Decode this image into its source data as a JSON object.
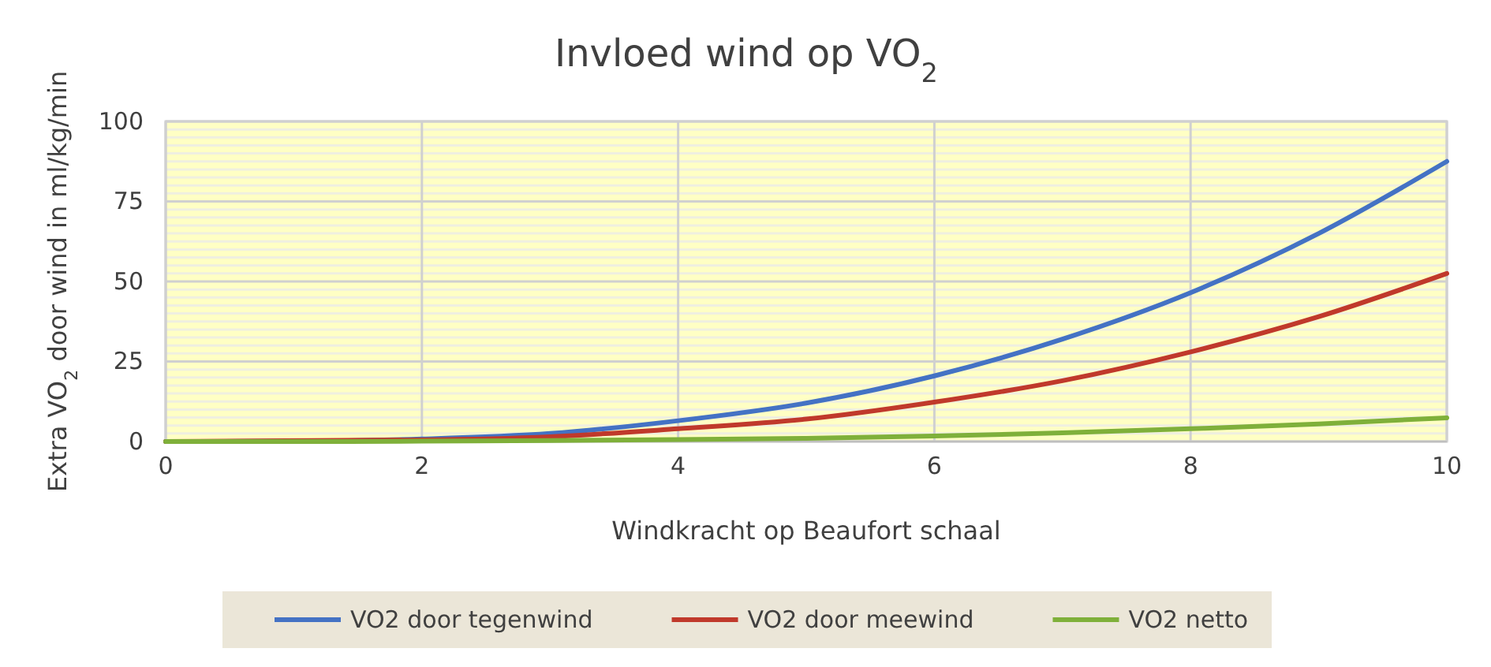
{
  "chart_data": {
    "type": "line",
    "title": "Invloed wind op VO$_{2}$",
    "xlabel": "Windkracht op Beaufort schaal",
    "ylabel": "Extra VO$_{2}$ door wind in ml/kg/min",
    "x": [
      0,
      1,
      2,
      3,
      4,
      5,
      6,
      7,
      8,
      9,
      10
    ],
    "series": [
      {
        "name": "VO2 door tegenwind",
        "color": "#4472c4",
        "values": [
          0,
          0.1,
          0.8,
          2.5,
          6.5,
          12,
          20.5,
          32,
          46.5,
          65,
          87.5
        ]
      },
      {
        "name": "VO2 door meewind",
        "color": "#c0392b",
        "values": [
          0,
          null,
          0.5,
          1.5,
          4,
          7,
          12.3,
          19,
          28,
          39,
          52.5
        ]
      },
      {
        "name": "VO2 netto",
        "color": "#7fb03a",
        "values": [
          0,
          0,
          0.1,
          0.3,
          0.6,
          1,
          1.7,
          2.7,
          4,
          5.5,
          7.4
        ]
      }
    ],
    "xlim": [
      0,
      10
    ],
    "xticks": [
      0,
      2,
      4,
      6,
      8,
      10
    ],
    "ylim": [
      0,
      100
    ],
    "yticks": [
      0,
      25,
      50,
      75,
      100
    ],
    "grid": true,
    "legend": "bottom",
    "marker": "none",
    "line_style": "solid"
  }
}
